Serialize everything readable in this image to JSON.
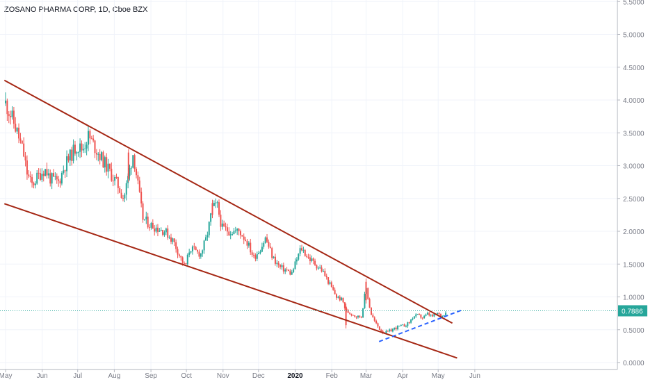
{
  "chart_data": {
    "type": "candlestick",
    "title": "ZOSANO PHARMA CORP, 1D, Cboe BZX",
    "last_price": "0.7886",
    "y_ticks": [
      "0.0000",
      "0.5000",
      "1.0000",
      "1.5000",
      "2.0000",
      "2.5000",
      "3.0000",
      "3.5000",
      "4.0000",
      "4.5000",
      "5.0000",
      "5.5000"
    ],
    "y_tick_values": [
      0,
      0.5,
      1,
      1.5,
      2,
      2.5,
      3,
      3.5,
      4,
      4.5,
      5,
      5.5
    ],
    "x_ticks": [
      {
        "label": "May",
        "t": 0
      },
      {
        "label": "Jun",
        "t": 31
      },
      {
        "label": "Jul",
        "t": 61
      },
      {
        "label": "Aug",
        "t": 92
      },
      {
        "label": "Sep",
        "t": 123
      },
      {
        "label": "Oct",
        "t": 153
      },
      {
        "label": "Nov",
        "t": 184
      },
      {
        "label": "Dec",
        "t": 214
      },
      {
        "label": "2020",
        "t": 245,
        "bold": true
      },
      {
        "label": "Feb",
        "t": 276
      },
      {
        "label": "Mar",
        "t": 305
      },
      {
        "label": "Apr",
        "t": 336
      },
      {
        "label": "May",
        "t": 366
      },
      {
        "label": "Jun",
        "t": 397
      }
    ],
    "ylim": [
      0,
      5.5
    ],
    "price_series": [
      [
        0,
        3.95
      ],
      [
        5,
        3.75
      ],
      [
        10,
        3.5
      ],
      [
        15,
        3.2
      ],
      [
        18,
        2.9
      ],
      [
        22,
        2.7
      ],
      [
        28,
        2.85
      ],
      [
        33,
        2.95
      ],
      [
        38,
        2.8
      ],
      [
        45,
        2.75
      ],
      [
        50,
        3.0
      ],
      [
        55,
        3.15
      ],
      [
        60,
        3.3
      ],
      [
        65,
        3.25
      ],
      [
        70,
        3.45
      ],
      [
        75,
        3.3
      ],
      [
        80,
        3.15
      ],
      [
        85,
        3.0
      ],
      [
        90,
        2.85
      ],
      [
        95,
        2.7
      ],
      [
        100,
        2.5
      ],
      [
        104,
        2.85
      ],
      [
        108,
        3.2
      ],
      [
        112,
        2.7
      ],
      [
        116,
        2.2
      ],
      [
        122,
        2.1
      ],
      [
        128,
        2.05
      ],
      [
        135,
        2.0
      ],
      [
        142,
        1.85
      ],
      [
        148,
        1.6
      ],
      [
        152,
        1.45
      ],
      [
        156,
        1.75
      ],
      [
        160,
        1.7
      ],
      [
        165,
        1.65
      ],
      [
        170,
        1.9
      ],
      [
        175,
        2.35
      ],
      [
        179,
        2.4
      ],
      [
        183,
        2.05
      ],
      [
        190,
        2.0
      ],
      [
        198,
        2.0
      ],
      [
        204,
        1.85
      ],
      [
        210,
        1.6
      ],
      [
        216,
        1.75
      ],
      [
        220,
        1.9
      ],
      [
        226,
        1.6
      ],
      [
        232,
        1.45
      ],
      [
        238,
        1.4
      ],
      [
        242,
        1.35
      ],
      [
        246,
        1.55
      ],
      [
        250,
        1.75
      ],
      [
        256,
        1.6
      ],
      [
        262,
        1.5
      ],
      [
        268,
        1.4
      ],
      [
        274,
        1.2
      ],
      [
        280,
        1.0
      ],
      [
        285,
        0.95
      ],
      [
        288,
        0.78
      ],
      [
        292,
        0.75
      ],
      [
        297,
        0.7
      ],
      [
        301,
        0.7
      ],
      [
        305,
        1.15
      ],
      [
        309,
        0.75
      ],
      [
        313,
        0.6
      ],
      [
        317,
        0.5
      ],
      [
        321,
        0.45
      ],
      [
        325,
        0.48
      ],
      [
        329,
        0.52
      ],
      [
        333,
        0.55
      ],
      [
        337,
        0.56
      ],
      [
        341,
        0.6
      ],
      [
        345,
        0.7
      ],
      [
        349,
        0.72
      ],
      [
        353,
        0.68
      ],
      [
        357,
        0.74
      ],
      [
        361,
        0.7
      ],
      [
        365,
        0.75
      ],
      [
        369,
        0.7
      ],
      [
        373,
        0.79
      ]
    ],
    "trendlines": [
      {
        "name": "upper-channel",
        "color": "#a52714",
        "style": "solid",
        "from": [
          -1,
          4.3
        ],
        "to": [
          378,
          0.6
        ]
      },
      {
        "name": "lower-channel",
        "color": "#a52714",
        "style": "solid",
        "from": [
          -1,
          2.42
        ],
        "to": [
          382,
          0.07
        ]
      },
      {
        "name": "support-line",
        "color": "#2962ff",
        "style": "dashed",
        "from": [
          316,
          0.32
        ],
        "to": [
          386,
          0.8
        ]
      }
    ],
    "colors": {
      "up": "#26a69a",
      "down": "#ef5350",
      "grid": "#f0f3fa",
      "axis": "#787b86",
      "price_label": "#26a69a"
    }
  }
}
